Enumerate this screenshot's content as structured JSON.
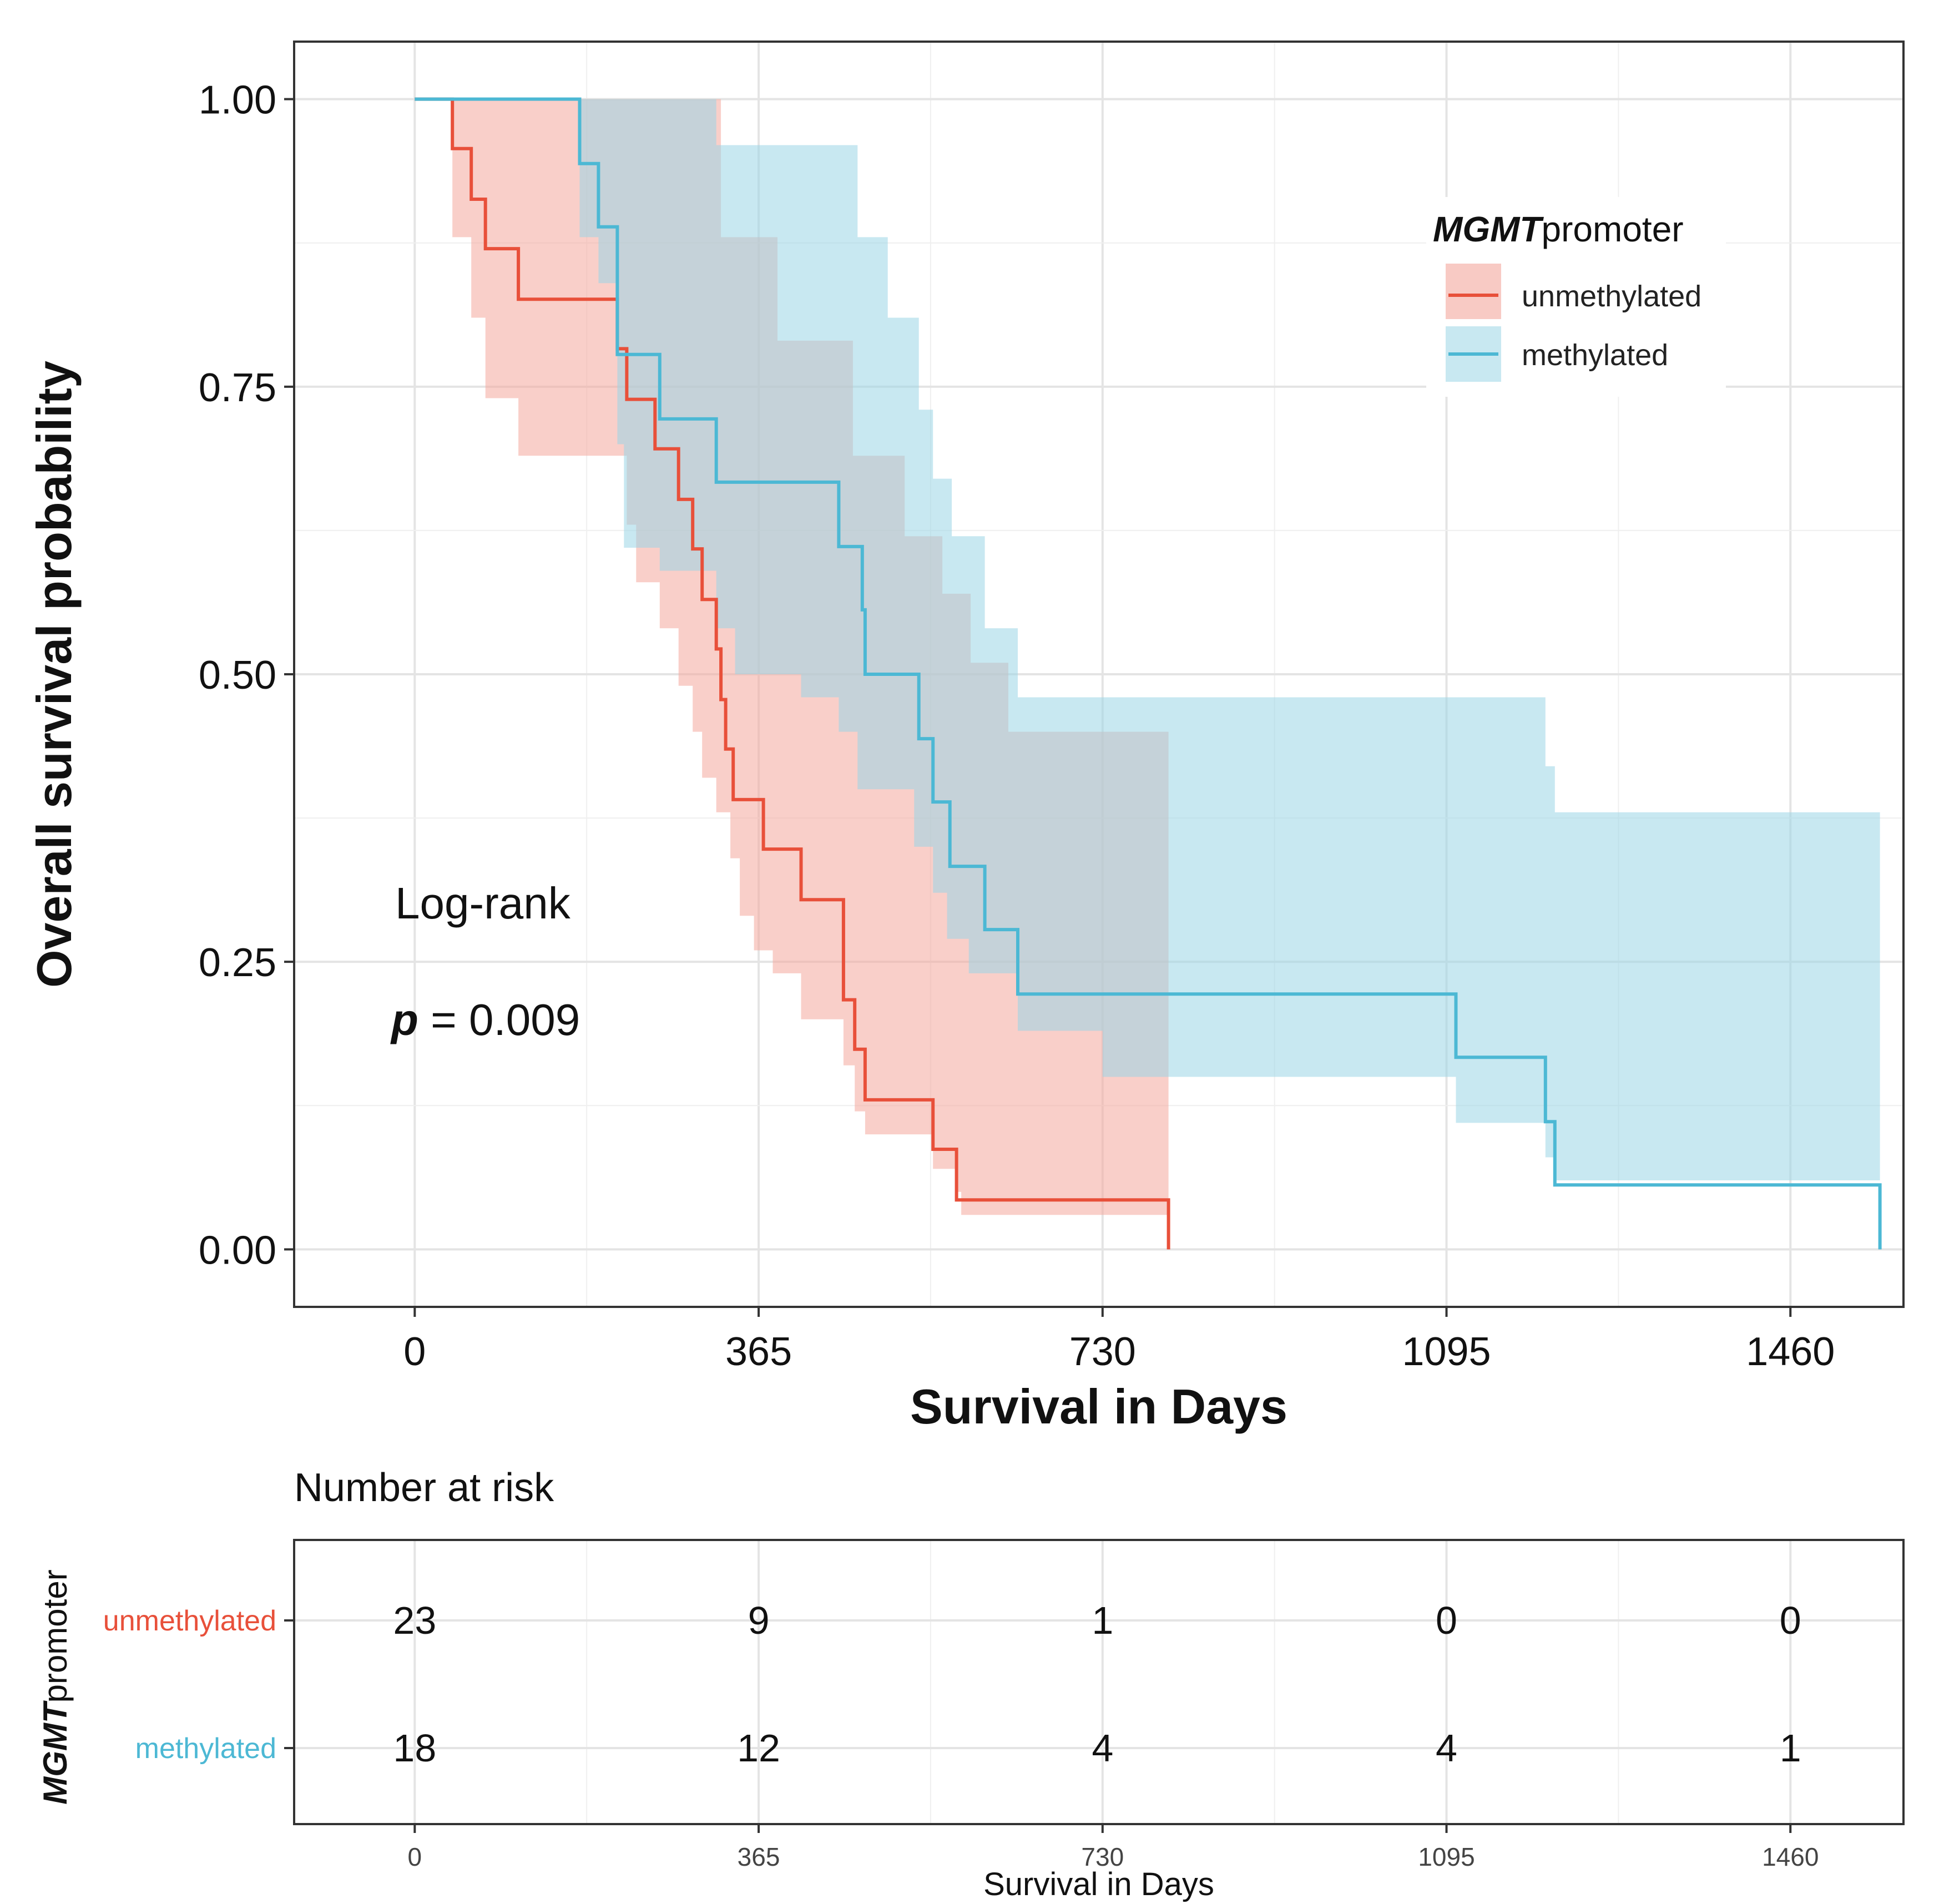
{
  "chart_data": {
    "type": "kaplan-meier",
    "title": "",
    "xlabel": "Survival in Days",
    "ylabel": "Overall survival probability",
    "xlim": [
      -128,
      1580
    ],
    "ylim": [
      -0.05,
      1.05
    ],
    "x_ticks": [
      "0",
      "365",
      "730",
      "1095",
      "1460"
    ],
    "x_tick_values": [
      0,
      365,
      730,
      1095,
      1460
    ],
    "y_ticks": [
      "0.00",
      "0.25",
      "0.50",
      "0.75",
      "1.00"
    ],
    "y_tick_values": [
      0,
      0.25,
      0.5,
      0.75,
      1.0
    ],
    "grid": true,
    "legend": {
      "title_italic": "MGMT",
      "title_rest": "promoter",
      "placement": "top-right",
      "entries": [
        "unmethylated",
        "methylated"
      ]
    },
    "annotation": {
      "test": "Log-rank",
      "p_symbol": "p",
      "p_text": " = 0.009"
    },
    "series": [
      {
        "name": "unmethylated",
        "color": "#e8503a",
        "fill": "#f4a79d",
        "steps": [
          [
            0,
            1.0
          ],
          [
            40,
            1.0
          ],
          [
            40,
            0.957
          ],
          [
            60,
            0.957
          ],
          [
            60,
            0.913
          ],
          [
            75,
            0.913
          ],
          [
            75,
            0.87
          ],
          [
            110,
            0.87
          ],
          [
            110,
            0.826
          ],
          [
            215,
            0.826
          ],
          [
            215,
            0.783
          ],
          [
            225,
            0.783
          ],
          [
            225,
            0.739
          ],
          [
            255,
            0.739
          ],
          [
            255,
            0.696
          ],
          [
            280,
            0.696
          ],
          [
            280,
            0.652
          ],
          [
            295,
            0.652
          ],
          [
            295,
            0.609
          ],
          [
            305,
            0.609
          ],
          [
            305,
            0.565
          ],
          [
            320,
            0.565
          ],
          [
            320,
            0.522
          ],
          [
            325,
            0.522
          ],
          [
            325,
            0.478
          ],
          [
            330,
            0.478
          ],
          [
            330,
            0.435
          ],
          [
            338,
            0.435
          ],
          [
            338,
            0.391
          ],
          [
            370,
            0.391
          ],
          [
            370,
            0.348
          ],
          [
            410,
            0.348
          ],
          [
            410,
            0.304
          ],
          [
            455,
            0.304
          ],
          [
            455,
            0.217
          ],
          [
            467,
            0.217
          ],
          [
            467,
            0.174
          ],
          [
            478,
            0.174
          ],
          [
            478,
            0.13
          ],
          [
            550,
            0.13
          ],
          [
            550,
            0.087
          ],
          [
            575,
            0.087
          ],
          [
            575,
            0.043
          ],
          [
            800,
            0.043
          ],
          [
            800,
            0.0
          ]
        ],
        "ci_upper": [
          [
            40,
            1.0
          ],
          [
            215,
            1.0
          ],
          [
            285,
            1.0
          ],
          [
            325,
            0.88
          ],
          [
            385,
            0.79
          ],
          [
            465,
            0.69
          ],
          [
            520,
            0.62
          ],
          [
            560,
            0.57
          ],
          [
            590,
            0.51
          ],
          [
            630,
            0.45
          ],
          [
            800,
            0.38
          ]
        ],
        "ci_lower": [
          [
            40,
            0.88
          ],
          [
            60,
            0.81
          ],
          [
            75,
            0.74
          ],
          [
            110,
            0.69
          ],
          [
            210,
            0.69
          ],
          [
            225,
            0.63
          ],
          [
            235,
            0.58
          ],
          [
            260,
            0.54
          ],
          [
            280,
            0.49
          ],
          [
            295,
            0.45
          ],
          [
            305,
            0.41
          ],
          [
            320,
            0.38
          ],
          [
            335,
            0.34
          ],
          [
            345,
            0.29
          ],
          [
            360,
            0.26
          ],
          [
            380,
            0.24
          ],
          [
            410,
            0.2
          ],
          [
            455,
            0.16
          ],
          [
            467,
            0.12
          ],
          [
            478,
            0.1
          ],
          [
            550,
            0.07
          ],
          [
            575,
            0.05
          ],
          [
            580,
            0.03
          ],
          [
            800,
            0.03
          ]
        ]
      },
      {
        "name": "methylated",
        "color": "#4cb8d4",
        "fill": "#9bd6e6",
        "steps": [
          [
            0,
            1.0
          ],
          [
            175,
            1.0
          ],
          [
            175,
            0.944
          ],
          [
            195,
            0.944
          ],
          [
            195,
            0.889
          ],
          [
            215,
            0.889
          ],
          [
            215,
            0.778
          ],
          [
            260,
            0.778
          ],
          [
            260,
            0.722
          ],
          [
            320,
            0.722
          ],
          [
            320,
            0.667
          ],
          [
            450,
            0.667
          ],
          [
            450,
            0.611
          ],
          [
            475,
            0.611
          ],
          [
            475,
            0.556
          ],
          [
            478,
            0.556
          ],
          [
            478,
            0.5
          ],
          [
            535,
            0.5
          ],
          [
            535,
            0.444
          ],
          [
            550,
            0.444
          ],
          [
            550,
            0.389
          ],
          [
            568,
            0.389
          ],
          [
            568,
            0.333
          ],
          [
            605,
            0.333
          ],
          [
            605,
            0.278
          ],
          [
            640,
            0.278
          ],
          [
            640,
            0.222
          ],
          [
            1105,
            0.222
          ],
          [
            1105,
            0.167
          ],
          [
            1200,
            0.167
          ],
          [
            1200,
            0.111
          ],
          [
            1210,
            0.111
          ],
          [
            1210,
            0.056
          ],
          [
            1555,
            0.056
          ],
          [
            1555,
            0.0
          ]
        ],
        "ci_upper": [
          [
            175,
            1.0
          ],
          [
            260,
            1.0
          ],
          [
            320,
            0.96
          ],
          [
            445,
            0.96
          ],
          [
            470,
            0.88
          ],
          [
            502,
            0.81
          ],
          [
            535,
            0.73
          ],
          [
            550,
            0.67
          ],
          [
            570,
            0.62
          ],
          [
            605,
            0.54
          ],
          [
            640,
            0.48
          ],
          [
            1105,
            0.48
          ],
          [
            1200,
            0.42
          ],
          [
            1210,
            0.38
          ],
          [
            1555,
            0.38
          ]
        ],
        "ci_lower": [
          [
            175,
            0.88
          ],
          [
            195,
            0.84
          ],
          [
            215,
            0.7
          ],
          [
            222,
            0.61
          ],
          [
            260,
            0.59
          ],
          [
            320,
            0.54
          ],
          [
            340,
            0.5
          ],
          [
            410,
            0.48
          ],
          [
            450,
            0.45
          ],
          [
            470,
            0.4
          ],
          [
            530,
            0.35
          ],
          [
            550,
            0.31
          ],
          [
            565,
            0.27
          ],
          [
            588,
            0.24
          ],
          [
            640,
            0.19
          ],
          [
            730,
            0.15
          ],
          [
            800,
            0.15
          ],
          [
            1105,
            0.11
          ],
          [
            1200,
            0.08
          ],
          [
            1210,
            0.06
          ],
          [
            1555,
            0.06
          ]
        ]
      }
    ],
    "risk_table": {
      "title": "Number at risk",
      "group_title_italic": "MGMT",
      "group_title_rest": "promoter",
      "xlabel": "Survival in Days",
      "rows": [
        {
          "name": "unmethylated",
          "color": "#e8503a",
          "values": [
            "23",
            "9",
            "1",
            "0",
            "0"
          ]
        },
        {
          "name": "methylated",
          "color": "#4cb8d4",
          "values": [
            "18",
            "12",
            "4",
            "4",
            "1"
          ]
        }
      ]
    }
  }
}
